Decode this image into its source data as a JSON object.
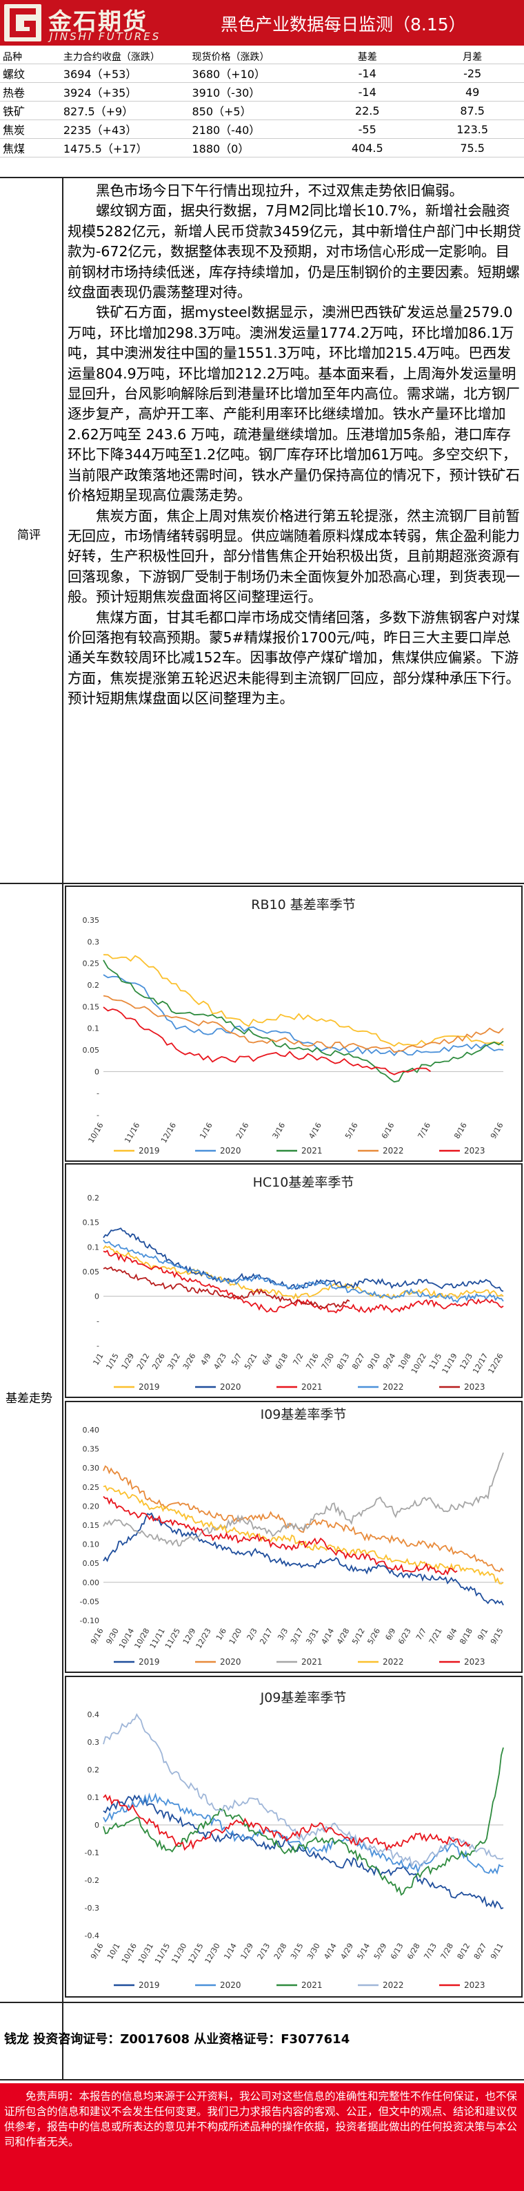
{
  "header": {
    "logo_cn": "金石期货",
    "logo_en": "JINSHI FUTURES",
    "title": "黑色产业数据每日监测（8.15）"
  },
  "table": {
    "columns": [
      "品种",
      "主力合约收盘（涨跌）",
      "现货价格（涨跌）",
      "基差",
      "月差"
    ],
    "rows": [
      [
        "螺纹",
        "3694（+53）",
        "3680（+10）",
        "-14",
        "-25"
      ],
      [
        "热卷",
        "3924（+35）",
        "3910（-30）",
        "-14",
        "49"
      ],
      [
        "铁矿",
        "827.5（+9）",
        "850（+5）",
        "22.5",
        "87.5"
      ],
      [
        "焦炭",
        "2235（+43）",
        "2180（-40）",
        "-55",
        "123.5"
      ],
      [
        "焦煤",
        "1475.5（+17）",
        "1880（0）",
        "404.5",
        "75.5"
      ]
    ]
  },
  "labels": {
    "comment": "简评",
    "basis": "基差走势"
  },
  "comment": {
    "p1": "黑色市场今日下午行情出现拉升，不过双焦走势依旧偏弱。",
    "p2": "螺纹钢方面，据央行数据，7月M2同比增长10.7%，新增社会融资规模5282亿元，新增人民币贷款3459亿元，其中新增住户部门中长期贷款为-672亿元，数据整体表现不及预期，对市场信心形成一定影响。目前钢材市场持续低迷，库存持续增加，仍是压制钢价的主要因素。短期螺纹盘面表现仍震荡整理对待。",
    "p3": "铁矿石方面，据mysteel数据显示，澳洲巴西铁矿发运总量2579.0万吨，环比增加298.3万吨。澳洲发运量1774.2万吨，环比增加86.1万吨，其中澳洲发往中国的量1551.3万吨，环比增加215.4万吨。巴西发运量804.9万吨，环比增加212.2万吨。基本面来看，上周海外发运量明显回升，台风影响解除后到港量环比增加至年内高位。需求端，北方钢厂逐步复产，高炉开工率、产能利用率环比继续增加。铁水产量环比增加2.62万吨至 243.6 万吨，疏港量继续增加。压港增加5条船，港口库存环比下降344万吨至1.2亿吨。钢厂库存环比增加61万吨。多空交织下，当前限产政策落地还需时间，铁水产量仍保持高位的情况下，预计铁矿石价格短期呈现高位震荡走势。",
    "p4": "焦炭方面，焦企上周对焦炭价格进行第五轮提涨，然主流钢厂目前暂无回应，市场情绪转弱明显。供应端随着原料煤成本转弱，焦企盈利能力好转，生产积极性回升，部分惜售焦企开始积极出货，且前期超涨资源有回落现象，下游钢厂受制于制场仍未全面恢复外加恐高心理，到货表现一般。预计短期焦炭盘面将区间整理运行。",
    "p5": "焦煤方面，甘其毛都口岸市场成交情绪回落，多数下游焦钢客户对煤价回落抱有较高预期。蒙5#精煤报价1700元/吨，昨日三大主要口岸总通关车数较周环比减152车。因事故停产煤矿增加，焦煤供应偏紧。下游方面，焦炭提涨第五轮迟迟未能得到主流钢厂回应，部分煤种承压下行。预计短期焦煤盘面以区间整理为主。"
  },
  "colors": {
    "brand_red": "#c8101c",
    "disclaimer_red": "#e4001e",
    "y2019": "#fbc02d",
    "y2020": "#1f4e9c",
    "y2021": "#2e8b3e",
    "y2022": "#e88a3a",
    "y2023": "#e8141c"
  },
  "chart_data": [
    {
      "type": "line",
      "title": "RB10 基差率季节",
      "x": [
        "10/16",
        "11/16",
        "12/16",
        "1/16",
        "2/16",
        "3/16",
        "4/16",
        "5/16",
        "6/16",
        "7/16",
        "8/16",
        "9/16"
      ],
      "ylim": [
        -0.1,
        0.35
      ],
      "yticks": [
        "0.35",
        "0.3",
        "0.25",
        "0.2",
        "0.15",
        "0.1",
        "0.05",
        "0",
        "-",
        "-"
      ],
      "series": [
        {
          "name": "2019",
          "color": "#fbc02d",
          "values": [
            0.27,
            0.26,
            0.2,
            0.14,
            0.11,
            0.13,
            0.12,
            0.1,
            0.06,
            0.07,
            0.08,
            0.06
          ]
        },
        {
          "name": "2020",
          "color": "#4a90d9",
          "values": [
            0.22,
            0.2,
            0.1,
            0.09,
            0.1,
            0.09,
            0.05,
            0.05,
            0.04,
            0.05,
            0.06,
            0.05
          ]
        },
        {
          "name": "2021",
          "color": "#2e8b3e",
          "values": [
            0.25,
            0.18,
            0.14,
            0.13,
            0.09,
            0.06,
            0.05,
            0.03,
            -0.02,
            0.02,
            0.04,
            0.07
          ]
        },
        {
          "name": "2022",
          "color": "#e88a3a",
          "values": [
            0.18,
            0.15,
            0.12,
            0.11,
            0.07,
            0.07,
            0.06,
            0.06,
            0.05,
            0.06,
            0.08,
            0.1
          ]
        },
        {
          "name": "2023",
          "color": "#e8141c",
          "values": [
            0.15,
            0.11,
            0.05,
            0.03,
            0.03,
            0.04,
            0.03,
            0.02,
            0.0,
            0.0,
            null,
            null
          ]
        }
      ]
    },
    {
      "type": "line",
      "title": "HC10基差率季节",
      "x": [
        "1/1",
        "1/15",
        "1/29",
        "2/12",
        "2/26",
        "3/12",
        "3/26",
        "4/9",
        "4/23",
        "5/7",
        "5/21",
        "6/4",
        "6/18",
        "7/2",
        "7/16",
        "7/30",
        "8/13",
        "8/27",
        "9/10",
        "9/24",
        "10/8",
        "10/22",
        "11/5",
        "11/19",
        "12/3",
        "12/17",
        "12/26"
      ],
      "ylim": [
        -0.1,
        0.2
      ],
      "yticks": [
        "0.2",
        "0.15",
        "0.1",
        "0.05",
        "0",
        "-",
        "-"
      ],
      "series": [
        {
          "name": "2019",
          "color": "#fbc02d",
          "values": [
            0.1,
            0.09,
            0.08,
            0.06,
            0.06,
            0.05,
            0.05,
            0.04,
            0.03,
            0.02,
            0.01,
            0.01,
            0.0,
            0.0,
            0.01,
            0.02,
            0.02,
            0.01,
            0.0,
            0.0,
            0.01,
            0.01,
            0.0,
            0.0,
            0.01,
            0.01,
            0.0
          ]
        },
        {
          "name": "2020",
          "color": "#1f4e9c",
          "values": [
            0.12,
            0.14,
            0.12,
            0.1,
            0.08,
            0.06,
            0.05,
            0.04,
            0.03,
            0.04,
            0.04,
            0.03,
            0.02,
            0.02,
            0.03,
            0.03,
            0.02,
            0.03,
            0.03,
            0.02,
            0.03,
            0.03,
            0.02,
            0.02,
            0.03,
            0.03,
            0.01
          ]
        },
        {
          "name": "2021",
          "color": "#e8141c",
          "values": [
            0.09,
            0.08,
            0.07,
            0.06,
            0.05,
            0.04,
            0.03,
            0.02,
            0.01,
            -0.01,
            -0.02,
            -0.03,
            -0.02,
            -0.01,
            -0.02,
            -0.03,
            -0.02,
            -0.03,
            -0.02,
            -0.03,
            -0.02,
            -0.01,
            -0.02,
            -0.02,
            -0.01,
            -0.01,
            -0.02
          ]
        },
        {
          "name": "2022",
          "color": "#4a90d9",
          "values": [
            0.11,
            0.1,
            0.09,
            0.08,
            0.07,
            0.06,
            0.05,
            0.04,
            0.03,
            0.03,
            0.04,
            0.03,
            0.02,
            0.02,
            0.03,
            0.02,
            0.01,
            0.01,
            0.0,
            0.0,
            0.01,
            0.0,
            0.0,
            -0.01,
            0.0,
            0.0,
            -0.01
          ]
        },
        {
          "name": "2023",
          "color": "#b71c1c",
          "values": [
            0.06,
            0.05,
            0.04,
            0.03,
            0.02,
            0.02,
            0.01,
            0.01,
            0.0,
            0.0,
            0.01,
            0.0,
            -0.01,
            -0.01,
            -0.02,
            -0.02,
            -0.01,
            null,
            null,
            null,
            null,
            null,
            null,
            null,
            null,
            null,
            null
          ]
        }
      ]
    },
    {
      "type": "line",
      "title": "I09基差率季节",
      "x": [
        "9/16",
        "9/30",
        "10/14",
        "10/28",
        "11/11",
        "11/25",
        "12/9",
        "12/23",
        "1/6",
        "1/20",
        "2/3",
        "2/17",
        "3/3",
        "3/17",
        "3/31",
        "4/14",
        "4/28",
        "5/12",
        "5/26",
        "6/9",
        "6/23",
        "7/7",
        "7/21",
        "8/4",
        "8/18",
        "9/1",
        "9/15"
      ],
      "ylim": [
        -0.1,
        0.4
      ],
      "yticks": [
        "0.40",
        "0.35",
        "0.30",
        "0.25",
        "0.20",
        "0.15",
        "0.10",
        "0.05",
        "0.00",
        "-0.05",
        "-0.10"
      ],
      "series": [
        {
          "name": "2019",
          "color": "#1f4e9c",
          "values": [
            0.05,
            0.1,
            0.12,
            0.18,
            0.15,
            0.13,
            0.12,
            0.1,
            0.09,
            0.07,
            0.08,
            0.06,
            0.05,
            0.04,
            0.05,
            0.06,
            0.04,
            0.03,
            0.04,
            0.02,
            0.02,
            0.01,
            0.01,
            0.0,
            -0.02,
            -0.05,
            -0.06
          ]
        },
        {
          "name": "2020",
          "color": "#e88a3a",
          "values": [
            0.3,
            0.28,
            0.25,
            0.22,
            0.2,
            0.21,
            0.19,
            0.18,
            0.17,
            0.16,
            0.17,
            0.18,
            0.15,
            0.14,
            0.16,
            0.15,
            0.14,
            0.12,
            0.12,
            0.11,
            0.1,
            0.1,
            0.09,
            0.08,
            0.07,
            0.05,
            0.03
          ]
        },
        {
          "name": "2021",
          "color": "#a6a6a6",
          "values": [
            0.15,
            0.16,
            0.14,
            0.12,
            0.11,
            0.1,
            0.12,
            0.14,
            0.15,
            0.17,
            0.14,
            0.13,
            0.15,
            0.14,
            0.18,
            0.2,
            0.16,
            0.19,
            0.22,
            0.18,
            0.2,
            0.22,
            0.19,
            0.2,
            0.21,
            0.23,
            0.34
          ]
        },
        {
          "name": "2022",
          "color": "#fbc02d",
          "values": [
            0.25,
            0.24,
            0.22,
            0.2,
            0.19,
            0.18,
            0.16,
            0.15,
            0.14,
            0.13,
            0.12,
            0.11,
            0.12,
            0.1,
            0.09,
            0.09,
            0.08,
            0.08,
            0.07,
            0.06,
            0.05,
            0.05,
            0.04,
            0.04,
            0.03,
            0.02,
            0.0
          ]
        },
        {
          "name": "2023",
          "color": "#e8141c",
          "values": [
            0.22,
            0.2,
            0.18,
            0.17,
            0.16,
            0.15,
            0.14,
            0.12,
            0.12,
            0.11,
            0.12,
            0.1,
            0.09,
            0.1,
            0.11,
            0.08,
            0.07,
            0.07,
            0.05,
            0.04,
            0.03,
            0.04,
            0.03,
            0.03,
            null,
            null,
            null
          ]
        }
      ]
    },
    {
      "type": "line",
      "title": "J09基差率季节",
      "x": [
        "9/16",
        "10/1",
        "10/16",
        "10/31",
        "11/15",
        "11/30",
        "12/15",
        "12/30",
        "1/14",
        "1/29",
        "2/13",
        "2/28",
        "3/15",
        "3/30",
        "4/14",
        "4/29",
        "5/14",
        "5/29",
        "6/13",
        "6/28",
        "7/13",
        "7/28",
        "8/12",
        "8/27",
        "9/11"
      ],
      "ylim": [
        -0.4,
        0.4
      ],
      "yticks": [
        "0.4",
        "0.3",
        "0.2",
        "0.1",
        "0",
        "-0.1",
        "-0.2",
        "-0.3",
        "-0.4"
      ],
      "series": [
        {
          "name": "2019",
          "color": "#1f4e9c",
          "values": [
            0.05,
            0.08,
            0.1,
            0.06,
            0.03,
            0.0,
            -0.03,
            -0.05,
            -0.04,
            -0.06,
            -0.08,
            -0.06,
            -0.1,
            -0.12,
            -0.15,
            -0.13,
            -0.16,
            -0.18,
            -0.15,
            -0.2,
            -0.22,
            -0.25,
            -0.26,
            -0.28,
            -0.3
          ]
        },
        {
          "name": "2020",
          "color": "#4a90d9",
          "values": [
            0.02,
            0.05,
            0.08,
            0.1,
            0.08,
            0.05,
            0.03,
            0.0,
            -0.05,
            -0.04,
            -0.02,
            -0.05,
            -0.08,
            -0.1,
            -0.06,
            -0.05,
            -0.1,
            -0.12,
            -0.14,
            -0.16,
            -0.1,
            -0.08,
            -0.12,
            -0.18,
            -0.15
          ]
        },
        {
          "name": "2021",
          "color": "#2e8b3e",
          "values": [
            -0.02,
            0.0,
            0.02,
            -0.05,
            -0.1,
            -0.05,
            0.0,
            0.05,
            0.03,
            -0.02,
            -0.05,
            -0.1,
            -0.08,
            -0.05,
            -0.06,
            -0.1,
            -0.15,
            -0.2,
            -0.25,
            -0.18,
            -0.15,
            -0.12,
            -0.1,
            -0.05,
            0.28
          ]
        },
        {
          "name": "2022",
          "color": "#9fb6d8",
          "values": [
            0.3,
            0.35,
            0.4,
            0.3,
            0.2,
            0.15,
            0.1,
            0.05,
            0.08,
            0.1,
            0.05,
            0.0,
            -0.05,
            -0.02,
            0.0,
            -0.05,
            -0.08,
            -0.1,
            -0.12,
            -0.15,
            -0.1,
            -0.05,
            -0.08,
            -0.1,
            -0.12
          ]
        },
        {
          "name": "2023",
          "color": "#e8141c",
          "values": [
            0.1,
            0.08,
            0.05,
            0.0,
            -0.05,
            -0.08,
            -0.05,
            -0.02,
            0.02,
            0.0,
            -0.03,
            -0.05,
            -0.02,
            0.0,
            -0.03,
            -0.06,
            -0.05,
            -0.08,
            -0.06,
            -0.04,
            -0.05,
            -0.06,
            -0.07,
            null,
            null
          ]
        }
      ]
    }
  ],
  "contact": "钱龙 投资咨询证号：Z0017608 从业资格证号：F3077614",
  "disclaimer": "免责声明：本报告的信息均来源于公开资料，我公司对这些信息的准确性和完整性不作任何保证，也不保证所包含的信息和建议不会发生任何变更。我们已力求报告内容的客观、公正，但文中的观点、结论和建议仅供参考，报告中的信息或所表达的意见并不构成所述品种的操作依据，投资者据此做出的任何投资决策与本公司和作者无关。"
}
